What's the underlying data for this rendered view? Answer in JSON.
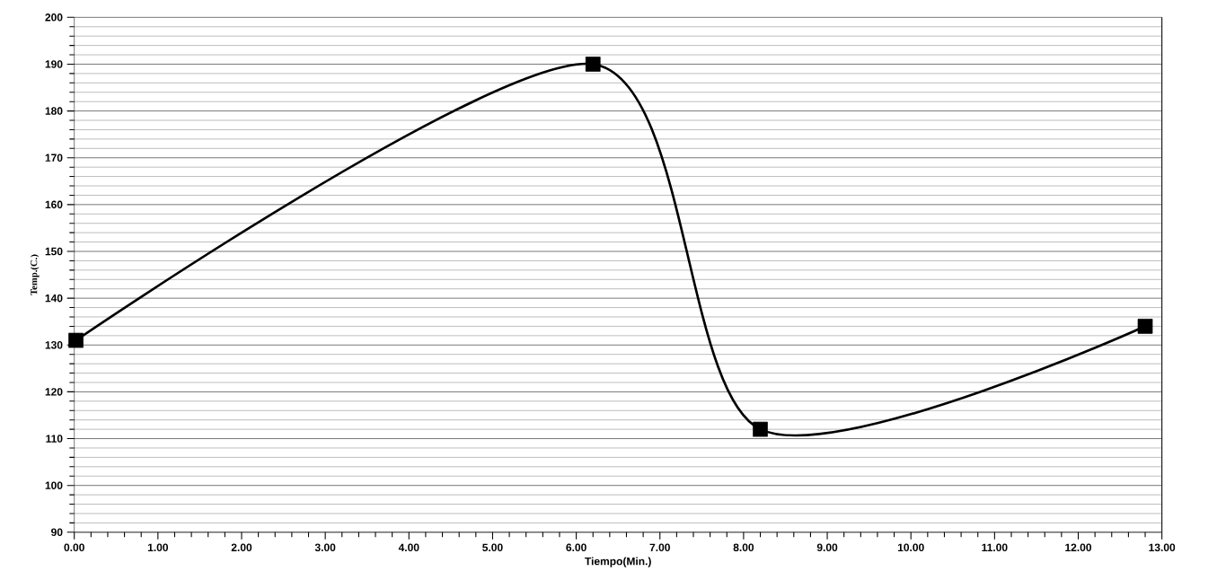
{
  "chart_data": {
    "type": "line",
    "xlabel": "Tiempo(Min.)",
    "ylabel": "Temp.(C.)",
    "x": [
      0.02,
      6.2,
      8.2,
      12.8
    ],
    "values": [
      131,
      190,
      112,
      134
    ],
    "color": "#000000",
    "marker": "square",
    "line_style": "solid",
    "grid": "y",
    "xlim": [
      0,
      13
    ],
    "ylim": [
      90,
      200
    ],
    "xticks": [
      {
        "value": 0,
        "label": "0.00"
      },
      {
        "value": 1,
        "label": "1.00"
      },
      {
        "value": 2,
        "label": "2.00"
      },
      {
        "value": 3,
        "label": "3.00"
      },
      {
        "value": 4,
        "label": "4.00"
      },
      {
        "value": 5,
        "label": "5.00"
      },
      {
        "value": 6,
        "label": "6.00"
      },
      {
        "value": 7,
        "label": "7.00"
      },
      {
        "value": 8,
        "label": "8.00"
      },
      {
        "value": 9,
        "label": "9.00"
      },
      {
        "value": 10,
        "label": "10.00"
      },
      {
        "value": 11,
        "label": "11.00"
      },
      {
        "value": 12,
        "label": "12.00"
      },
      {
        "value": 13,
        "label": "13.00"
      }
    ],
    "yticks": [
      90,
      100,
      110,
      120,
      130,
      140,
      150,
      160,
      170,
      180,
      190,
      200
    ]
  }
}
